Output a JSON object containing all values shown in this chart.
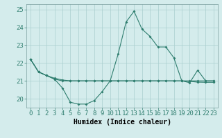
{
  "xlabel": "Humidex (Indice chaleur)",
  "x": [
    0,
    1,
    2,
    3,
    4,
    5,
    6,
    7,
    8,
    9,
    10,
    11,
    12,
    13,
    14,
    15,
    16,
    17,
    18,
    19,
    20,
    21,
    22,
    23
  ],
  "y_main": [
    22.2,
    21.5,
    21.3,
    21.1,
    20.6,
    19.8,
    19.7,
    19.7,
    19.9,
    20.4,
    21.0,
    22.5,
    24.3,
    24.9,
    23.9,
    23.5,
    22.9,
    22.9,
    22.3,
    21.0,
    20.9,
    21.6,
    21.0,
    21.0
  ],
  "y_line2": [
    22.2,
    21.5,
    21.3,
    21.15,
    21.05,
    21.0,
    21.0,
    21.0,
    21.0,
    21.0,
    21.0,
    21.0,
    21.0,
    21.0,
    21.0,
    21.0,
    21.0,
    21.0,
    21.0,
    21.0,
    20.97,
    20.93,
    20.92,
    20.92
  ],
  "y_line3": [
    22.2,
    21.5,
    21.3,
    21.1,
    21.0,
    21.0,
    21.0,
    21.0,
    21.0,
    21.0,
    21.0,
    21.0,
    21.0,
    21.0,
    21.0,
    21.0,
    21.0,
    21.0,
    21.0,
    21.0,
    21.0,
    21.0,
    21.0,
    21.0
  ],
  "line_color": "#2e7d6e",
  "bg_color": "#d4ecec",
  "grid_color": "#aacfcf",
  "ylim": [
    19.5,
    25.3
  ],
  "yticks": [
    20,
    21,
    22,
    23,
    24,
    25
  ],
  "marker": "D",
  "markersize": 2.0,
  "linewidth": 0.8,
  "xlabel_fontsize": 7,
  "tick_fontsize": 6.5
}
